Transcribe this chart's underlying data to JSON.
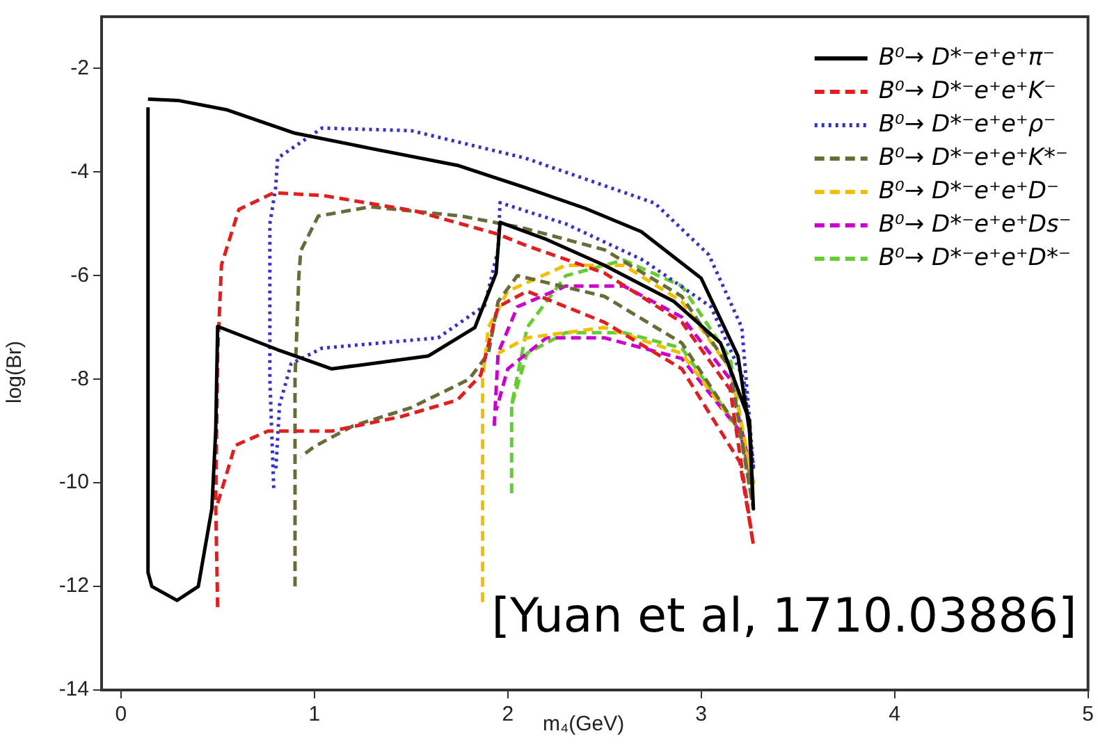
{
  "chart_data": {
    "type": "line",
    "xlabel": "m₄(GeV)",
    "ylabel": "log(Br)",
    "xlim": [
      -0.1,
      5
    ],
    "ylim": [
      -14,
      -1
    ],
    "xticks": [
      0,
      1,
      2,
      3,
      4,
      5
    ],
    "yticks": [
      -14,
      -12,
      -10,
      -8,
      -6,
      -4,
      -2
    ],
    "grid": false,
    "legend": "top right",
    "marker": "none",
    "annotations": [
      "[Yuan et al, 1710.03886]"
    ],
    "series": [
      {
        "name": "B⁰→ D*⁻e⁺e⁺π⁻",
        "color": "#000000",
        "line_style": "solid",
        "x": [
          0.14,
          0.3,
          0.55,
          0.9,
          1.3,
          1.74,
          2.09,
          2.4,
          2.69,
          3.0,
          3.19,
          3.25,
          3.27,
          3.25,
          3.1,
          2.86,
          2.5,
          2.2,
          1.96,
          1.94,
          1.83,
          1.59,
          1.09,
          0.81,
          0.5,
          0.49,
          0.47,
          0.4,
          0.29,
          0.16,
          0.14,
          0.14
        ],
        "values": [
          -2.59,
          -2.62,
          -2.8,
          -3.25,
          -3.55,
          -3.87,
          -4.3,
          -4.7,
          -5.15,
          -6.05,
          -7.55,
          -9,
          -10.5,
          -8.8,
          -7.3,
          -6.5,
          -5.8,
          -5.3,
          -4.97,
          -5.95,
          -7.0,
          -7.55,
          -7.8,
          -7.43,
          -6.98,
          -9,
          -10.5,
          -12.0,
          -12.27,
          -12.0,
          -11.73,
          -2.75
        ]
      },
      {
        "name": "B⁰→ D*⁻e⁺e⁺K⁻",
        "color": "#e02020",
        "line_style": "dashed",
        "x": [
          0.5,
          0.49,
          0.5,
          0.52,
          0.61,
          0.79,
          1.04,
          1.52,
          1.95,
          2.09,
          2.5,
          2.9,
          3.15,
          3.27,
          3.2,
          2.9,
          2.5,
          2.1,
          1.95,
          1.86,
          1.74,
          1.45,
          1.09,
          0.76,
          0.59,
          0.5
        ],
        "values": [
          -12.4,
          -10.4,
          -7.5,
          -5.79,
          -4.72,
          -4.4,
          -4.45,
          -4.75,
          -5.2,
          -5.41,
          -5.95,
          -6.9,
          -8.2,
          -11.2,
          -9.6,
          -7.8,
          -6.9,
          -6.3,
          -6.6,
          -7.92,
          -8.4,
          -8.72,
          -9.0,
          -9.0,
          -9.28,
          -10.4
        ]
      },
      {
        "name": "B⁰→ D*⁻e⁺e⁺ρ⁻",
        "color": "#3333cc",
        "line_style": "dotted",
        "x": [
          0.79,
          0.77,
          0.77,
          0.8,
          0.81,
          1.04,
          1.5,
          2.09,
          2.76,
          3.04,
          3.21,
          3.27,
          3.22,
          3.05,
          2.7,
          2.3,
          1.96,
          1.95,
          1.88,
          1.64,
          1.04,
          0.88,
          0.82,
          0.8
        ],
        "values": [
          -10.1,
          -8,
          -5,
          -4.3,
          -3.73,
          -3.15,
          -3.2,
          -3.73,
          -4.6,
          -5.6,
          -7.0,
          -9.7,
          -8,
          -6.6,
          -5.7,
          -5.0,
          -4.59,
          -5.5,
          -6.58,
          -7.2,
          -7.4,
          -7.7,
          -8.5,
          -9.8
        ]
      },
      {
        "name": "B⁰→ D*⁻e⁺e⁺K*⁻",
        "color": "#6b6b3a",
        "line_style": "dashed",
        "x": [
          0.9,
          0.9,
          0.92,
          0.93,
          1.02,
          1.29,
          1.76,
          2.07,
          2.5,
          2.9,
          3.15,
          3.27,
          3.2,
          2.9,
          2.5,
          2.05,
          1.95,
          1.9,
          1.8,
          1.5,
          1.2,
          1.0,
          0.93
        ],
        "values": [
          -12,
          -8,
          -6,
          -5.52,
          -4.85,
          -4.67,
          -4.85,
          -5.07,
          -5.5,
          -6.4,
          -7.8,
          -10.5,
          -9,
          -7.3,
          -6.4,
          -6.0,
          -6.5,
          -7.5,
          -8.0,
          -8.55,
          -8.9,
          -9.3,
          -9.5
        ]
      },
      {
        "name": "B⁰→ D*⁻e⁺e⁺D⁻",
        "color": "#f0c000",
        "line_style": "dashed",
        "x": [
          1.87,
          1.87,
          1.9,
          2.0,
          2.3,
          2.6,
          2.9,
          3.15,
          3.27,
          3.2,
          2.9,
          2.5,
          2.1,
          1.95
        ],
        "values": [
          -12.3,
          -8,
          -7,
          -6.3,
          -5.8,
          -5.8,
          -6.5,
          -7.8,
          -10,
          -9,
          -7.5,
          -7.0,
          -7.2,
          -7.5
        ]
      },
      {
        "name": "B⁰→ D*⁻e⁺e⁺Ds⁻",
        "color": "#cc00cc",
        "line_style": "dashed",
        "x": [
          1.93,
          1.95,
          2.05,
          2.3,
          2.6,
          2.9,
          3.15,
          3.27,
          3.2,
          2.9,
          2.5,
          2.2,
          2.0,
          1.94
        ],
        "values": [
          -8.9,
          -7.5,
          -6.6,
          -6.2,
          -6.2,
          -6.8,
          -8,
          -10,
          -9,
          -7.6,
          -7.2,
          -7.2,
          -7.8,
          -8.6
        ]
      },
      {
        "name": "B⁰→ D*⁻e⁺e⁺D*⁻",
        "color": "#66cc33",
        "line_style": "dashed",
        "x": [
          2.02,
          2.02,
          2.1,
          2.3,
          2.6,
          2.9,
          3.15,
          3.27,
          3.2,
          2.9,
          2.6,
          2.3,
          2.1,
          2.02
        ],
        "values": [
          -10.2,
          -8.5,
          -7,
          -6.0,
          -5.7,
          -6.2,
          -7.6,
          -10.2,
          -9,
          -7.4,
          -7.1,
          -7.1,
          -7.5,
          -8.5
        ]
      }
    ]
  }
}
